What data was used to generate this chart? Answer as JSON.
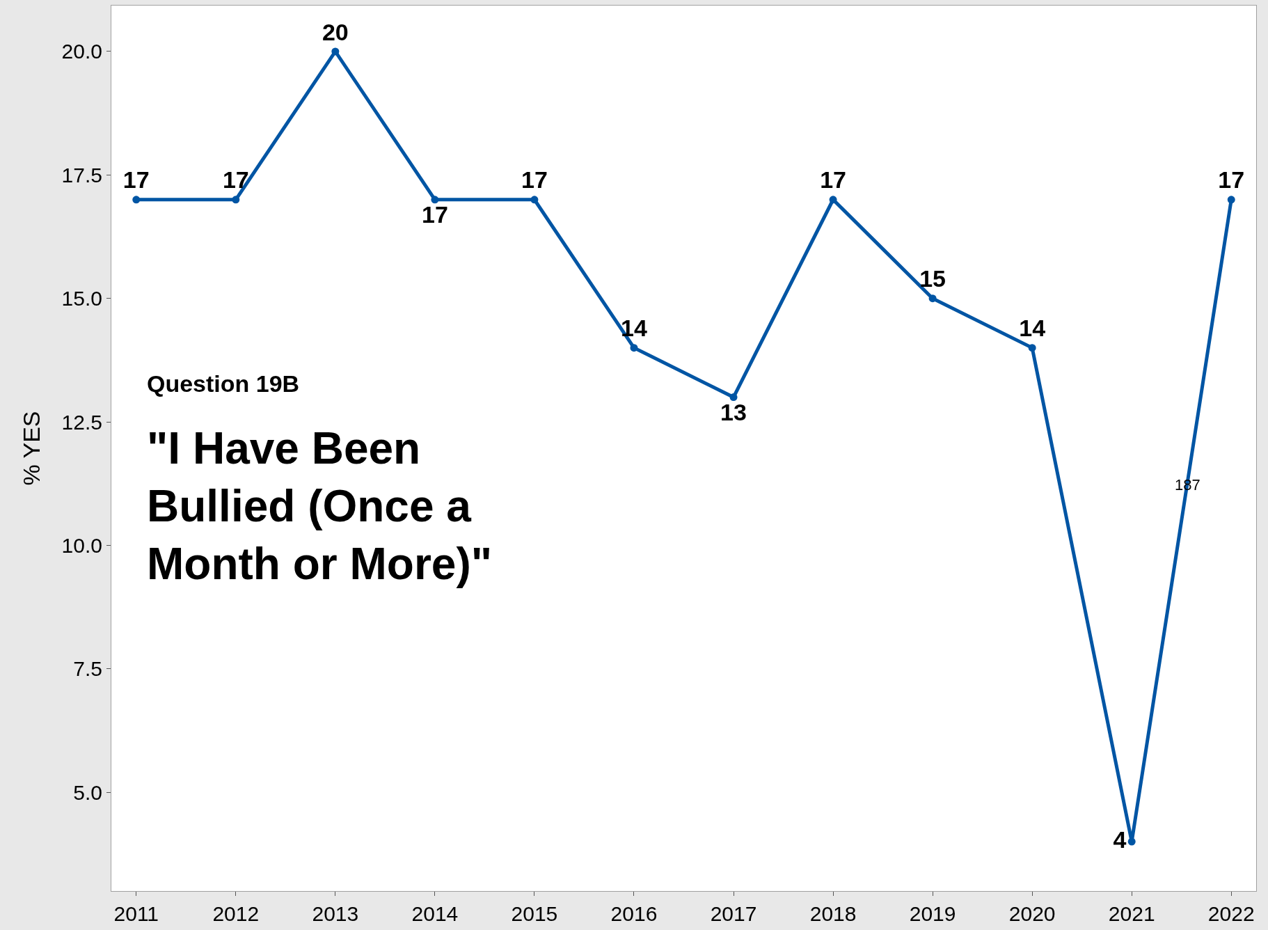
{
  "chart_data": {
    "type": "line",
    "ylabel": "% YES",
    "x": [
      2011,
      2012,
      2013,
      2014,
      2015,
      2016,
      2017,
      2018,
      2019,
      2020,
      2021,
      2022
    ],
    "series": [
      {
        "color": "#0055a4",
        "values": [
          17,
          17,
          20,
          17,
          17,
          14,
          13,
          17,
          15,
          14,
          4,
          17
        ]
      }
    ],
    "xlim": [
      2010.75,
      2022.25
    ],
    "xticks": [
      2011,
      2012,
      2013,
      2014,
      2015,
      2016,
      2017,
      2018,
      2019,
      2020,
      2021,
      2022
    ],
    "ylim": [
      3,
      20.93
    ],
    "yticks": [
      {
        "value": 5,
        "label": "5.0"
      },
      {
        "value": 7.5,
        "label": "7.5"
      },
      {
        "value": 10,
        "label": "10.0"
      },
      {
        "value": 12.5,
        "label": "12.5"
      },
      {
        "value": 15,
        "label": "15.0"
      },
      {
        "value": 17.5,
        "label": "17.5"
      },
      {
        "value": 20,
        "label": "20.0"
      }
    ],
    "data_labels": true,
    "marker": "circle",
    "line_style": "solid",
    "annotations": [
      "Question 19B",
      "\"I Have Been Bullied (Once a Month or More)\"",
      "187"
    ]
  }
}
